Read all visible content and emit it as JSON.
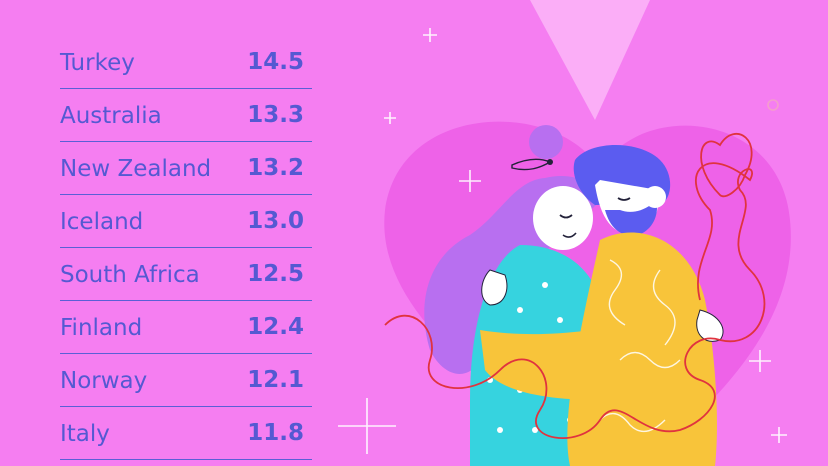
{
  "chart_data": {
    "type": "table",
    "categories": [
      "Turkey",
      "Australia",
      "New Zealand",
      "Iceland",
      "South Africa",
      "Finland",
      "Norway",
      "Italy"
    ],
    "values": [
      14.5,
      13.3,
      13.2,
      13.0,
      12.5,
      12.4,
      12.1,
      11.8
    ],
    "value_labels": [
      "14.5",
      "13.3",
      "13.2",
      "13.0",
      "12.5",
      "12.4",
      "12.1",
      "11.8"
    ],
    "title": "",
    "xlabel": "",
    "ylabel": ""
  },
  "colors": {
    "background": "#f57ef1",
    "text": "#5559d2",
    "divider": "#5a5fd6"
  },
  "illustration": {
    "subject": "hugging-couple-heart-illustration"
  }
}
